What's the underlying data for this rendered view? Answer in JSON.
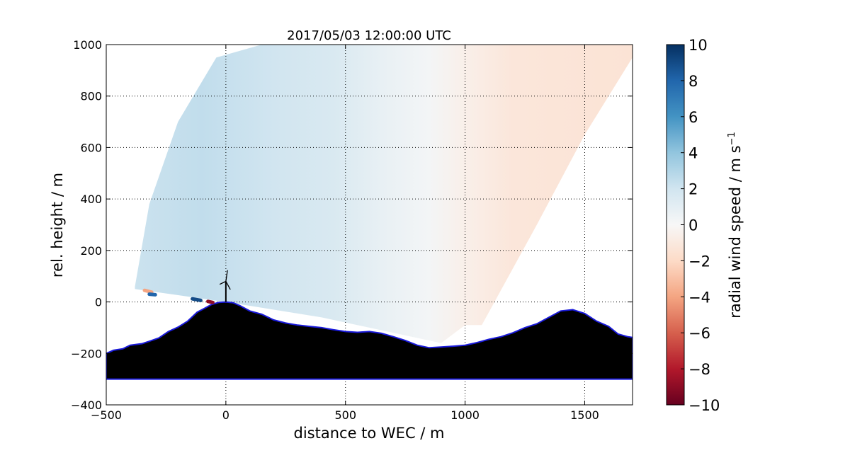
{
  "chart_data": {
    "type": "heatmap",
    "title": "2017/05/03 12:00:00 UTC",
    "xlabel": "distance to WEC / m",
    "ylabel": "rel. height / m",
    "xlim": [
      -500,
      1700
    ],
    "ylim": [
      -400,
      1000
    ],
    "xticks": [
      -500,
      0,
      500,
      1000,
      1500
    ],
    "yticks": [
      -400,
      -200,
      0,
      200,
      400,
      600,
      800,
      1000
    ],
    "grid": true,
    "colormap": "RdBu",
    "colorbar": {
      "label": "radial wind speed / m s",
      "label_superscript": "−1",
      "range": [
        -10,
        10
      ],
      "ticks": [
        "10",
        "8",
        "6",
        "4",
        "2",
        "0",
        "−2",
        "−4",
        "−6",
        "−8",
        "−10"
      ],
      "tick_values": [
        10,
        8,
        6,
        4,
        2,
        0,
        -2,
        -4,
        -6,
        -8,
        -10
      ]
    },
    "scan_sector": {
      "left_edge": [
        [
          -380,
          60
        ],
        [
          -320,
          380
        ],
        [
          -200,
          700
        ],
        [
          -40,
          950
        ],
        [
          150,
          1000
        ]
      ],
      "bottom_edge": [
        [
          -380,
          50
        ],
        [
          0,
          0
        ],
        [
          400,
          -60
        ],
        [
          900,
          -160
        ],
        [
          1000,
          -90
        ],
        [
          1070,
          -90
        ]
      ],
      "right_edge": [
        [
          1070,
          -90
        ],
        [
          1300,
          300
        ],
        [
          1500,
          650
        ],
        [
          1700,
          950
        ],
        [
          1700,
          1000
        ]
      ],
      "wind_profile": [
        {
          "x": -380,
          "v": 2.2
        },
        {
          "x": -100,
          "v": 2.5
        },
        {
          "x": 200,
          "v": 2.0
        },
        {
          "x": 450,
          "v": 1.6
        },
        {
          "x": 650,
          "v": 0.8
        },
        {
          "x": 850,
          "v": 0.2
        },
        {
          "x": 1000,
          "v": -0.6
        },
        {
          "x": 1200,
          "v": -1.2
        },
        {
          "x": 1700,
          "v": -1.4
        }
      ]
    },
    "terrain_floor": -300,
    "terrain": [
      [
        -500,
        -200
      ],
      [
        -470,
        -188
      ],
      [
        -430,
        -182
      ],
      [
        -400,
        -168
      ],
      [
        -350,
        -162
      ],
      [
        -320,
        -153
      ],
      [
        -280,
        -140
      ],
      [
        -240,
        -115
      ],
      [
        -200,
        -98
      ],
      [
        -160,
        -75
      ],
      [
        -120,
        -40
      ],
      [
        -90,
        -25
      ],
      [
        -60,
        -10
      ],
      [
        -30,
        -2
      ],
      [
        0,
        0
      ],
      [
        30,
        -3
      ],
      [
        60,
        -15
      ],
      [
        100,
        -35
      ],
      [
        150,
        -48
      ],
      [
        200,
        -70
      ],
      [
        250,
        -82
      ],
      [
        300,
        -90
      ],
      [
        350,
        -95
      ],
      [
        400,
        -100
      ],
      [
        450,
        -108
      ],
      [
        500,
        -115
      ],
      [
        550,
        -118
      ],
      [
        600,
        -115
      ],
      [
        650,
        -122
      ],
      [
        700,
        -135
      ],
      [
        750,
        -150
      ],
      [
        800,
        -168
      ],
      [
        850,
        -178
      ],
      [
        900,
        -175
      ],
      [
        950,
        -172
      ],
      [
        1000,
        -168
      ],
      [
        1050,
        -158
      ],
      [
        1100,
        -145
      ],
      [
        1150,
        -135
      ],
      [
        1200,
        -120
      ],
      [
        1250,
        -100
      ],
      [
        1300,
        -85
      ],
      [
        1350,
        -60
      ],
      [
        1400,
        -35
      ],
      [
        1450,
        -30
      ],
      [
        1500,
        -45
      ],
      [
        1550,
        -75
      ],
      [
        1600,
        -95
      ],
      [
        1640,
        -125
      ],
      [
        1680,
        -135
      ],
      [
        1700,
        -138
      ]
    ],
    "turbine": {
      "x": 0,
      "hub_height": 80,
      "blade_length": 45
    },
    "outlier_points": [
      {
        "x": -340,
        "y": 45,
        "x2": -310,
        "y2": 38,
        "v": -4
      },
      {
        "x": -320,
        "y": 30,
        "x2": -295,
        "y2": 28,
        "v": 8
      },
      {
        "x": -140,
        "y": 12,
        "x2": -105,
        "y2": 6,
        "v": 9
      },
      {
        "x": -75,
        "y": 2,
        "x2": -55,
        "y2": -2,
        "v": -9
      }
    ]
  }
}
